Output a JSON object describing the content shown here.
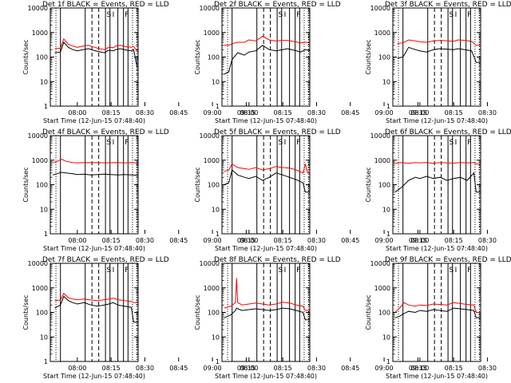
{
  "chart_data": {
    "type": "line",
    "layout": "3x3 grid of panels",
    "shared": {
      "xlabel": "Start Time (12-Jun-15 07:48:40)",
      "ylabel": "Counts/sec",
      "x_tick_labels": [
        "08:00",
        "08:15",
        "08:30",
        "08:45",
        "09:00",
        "09:15"
      ],
      "y_tick_labels": [
        "1",
        "10",
        "100",
        "1000",
        "10000"
      ],
      "ylim": [
        1,
        10000
      ],
      "yscale": "log",
      "xlim_minutes_after_0800": [
        -12,
        27
      ],
      "legend_text": "BLACK = Events, RED = LLD",
      "event_markers": [
        {
          "label": "S",
          "minute": 14
        },
        {
          "label": "I",
          "minute": 16
        },
        {
          "label": "F",
          "minute": 22
        }
      ],
      "colors": {
        "events": "#000000",
        "lld": "#ff0000"
      }
    },
    "panels": [
      {
        "title": "Det 1f BLACK = Events, RED = LLD",
        "series": [
          {
            "name": "Events",
            "x": [
              -10,
              -7.5,
              -6,
              -4,
              -2,
              0,
              2.5,
              5,
              7,
              9,
              12,
              14,
              16,
              17,
              19,
              22,
              24,
              25,
              26.5,
              27
            ],
            "y": [
              150,
              160,
              400,
              250,
              200,
              180,
              200,
              220,
              190,
              170,
              150,
              190,
              180,
              200,
              220,
              190,
              180,
              200,
              40,
              40
            ]
          },
          {
            "name": "LLD",
            "x": [
              -10,
              -7.5,
              -6,
              -4,
              -2,
              0,
              2.5,
              5,
              7,
              9,
              12,
              14,
              16,
              17,
              19,
              22,
              24,
              25,
              27
            ],
            "y": [
              220,
              230,
              550,
              330,
              280,
              250,
              280,
              300,
              260,
              230,
              200,
              250,
              240,
              280,
              300,
              260,
              250,
              270,
              150
            ]
          }
        ]
      },
      {
        "title": "Det 2f BLACK = Events, RED = LLD",
        "series": [
          {
            "name": "Events",
            "x": [
              -11,
              -9,
              -7.5,
              -5,
              -2,
              0,
              3,
              6,
              9,
              12,
              15,
              17,
              20,
              23,
              25,
              27
            ],
            "y": [
              20,
              25,
              80,
              150,
              120,
              160,
              180,
              300,
              200,
              180,
              200,
              220,
              190,
              160,
              200,
              180
            ]
          },
          {
            "name": "LLD",
            "x": [
              -11,
              -9,
              -7.5,
              -5,
              -2,
              0,
              3,
              6,
              9,
              12,
              15,
              17,
              20,
              23,
              25,
              27
            ],
            "y": [
              300,
              300,
              350,
              400,
              400,
              500,
              450,
              700,
              500,
              450,
              480,
              480,
              430,
              380,
              400,
              380
            ]
          }
        ]
      },
      {
        "title": "Det 3f BLACK = Events, RED = LLD",
        "series": [
          {
            "name": "Events",
            "x": [
              -10,
              -7.5,
              -5,
              -2,
              0,
              3,
              6,
              9,
              12,
              15,
              17,
              20,
              23,
              25,
              27
            ],
            "y": [
              90,
              100,
              250,
              200,
              180,
              160,
              200,
              220,
              210,
              200,
              220,
              200,
              180,
              60,
              60
            ]
          },
          {
            "name": "LLD",
            "x": [
              -10,
              -7.5,
              -5,
              -2,
              0,
              3,
              6,
              9,
              12,
              15,
              17,
              20,
              23,
              25,
              27
            ],
            "y": [
              350,
              380,
              500,
              450,
              420,
              400,
              450,
              480,
              460,
              440,
              500,
              480,
              430,
              300,
              300
            ]
          }
        ]
      },
      {
        "title": "Det 4f BLACK = Events, RED = LLD",
        "series": [
          {
            "name": "Events",
            "x": [
              -11,
              -9,
              -7,
              -5,
              -2,
              0,
              3,
              6,
              9,
              12,
              15,
              18,
              21,
              24,
              27
            ],
            "y": [
              250,
              280,
              320,
              300,
              280,
              260,
              270,
              250,
              260,
              270,
              260,
              250,
              260,
              250,
              240
            ]
          },
          {
            "name": "LLD",
            "x": [
              -11,
              -9,
              -7,
              -5,
              -2,
              0,
              3,
              6,
              9,
              12,
              15,
              18,
              21,
              24,
              27
            ],
            "y": [
              800,
              900,
              1100,
              900,
              800,
              780,
              800,
              790,
              800,
              780,
              790,
              800,
              780,
              790,
              780
            ]
          }
        ]
      },
      {
        "title": "Det 5f BLACK = Events, RED = LLD",
        "series": [
          {
            "name": "Events",
            "x": [
              -11,
              -9,
              -7.5,
              -5,
              -2,
              0,
              3,
              6,
              9,
              12,
              15,
              18,
              21,
              24,
              25,
              26,
              27
            ],
            "y": [
              100,
              120,
              400,
              250,
              200,
              180,
              220,
              150,
              200,
              300,
              250,
              200,
              160,
              120,
              50,
              50,
              50
            ]
          },
          {
            "name": "LLD",
            "x": [
              -11,
              -9,
              -7.5,
              -5,
              -2,
              0,
              3,
              6,
              9,
              12,
              15,
              18,
              21,
              24,
              25,
              26,
              27
            ],
            "y": [
              350,
              400,
              700,
              500,
              450,
              420,
              500,
              400,
              450,
              550,
              500,
              480,
              400,
              300,
              700,
              300,
              300
            ]
          }
        ]
      },
      {
        "title": "Det 6f BLACK = Events, RED = LLD",
        "series": [
          {
            "name": "Events",
            "x": [
              -11,
              -8,
              -5,
              -2,
              0,
              3,
              6,
              9,
              12,
              15,
              18,
              21,
              24,
              25,
              27
            ],
            "y": [
              50,
              80,
              150,
              200,
              180,
              220,
              180,
              200,
              150,
              180,
              200,
              150,
              300,
              50,
              50
            ]
          },
          {
            "name": "LLD",
            "x": [
              -11,
              -8,
              -5,
              -2,
              0,
              3,
              6,
              9,
              12,
              15,
              18,
              21,
              24,
              25,
              27
            ],
            "y": [
              750,
              800,
              750,
              800,
              780,
              800,
              750,
              800,
              780,
              760,
              800,
              780,
              800,
              700,
              700
            ]
          }
        ]
      },
      {
        "title": "Det 7f BLACK = Events, RED = LLD",
        "series": [
          {
            "name": "Events",
            "x": [
              -10,
              -7.5,
              -6,
              -4,
              -2,
              0,
              3,
              6,
              9,
              12,
              14,
              16,
              18,
              21,
              24,
              25,
              27
            ],
            "y": [
              150,
              200,
              450,
              300,
              250,
              220,
              250,
              200,
              180,
              200,
              220,
              250,
              200,
              180,
              160,
              40,
              40
            ]
          },
          {
            "name": "LLD",
            "x": [
              -10,
              -7.5,
              -6,
              -4,
              -2,
              0,
              3,
              6,
              9,
              12,
              14,
              16,
              18,
              21,
              24,
              25,
              27
            ],
            "y": [
              300,
              320,
              600,
              400,
              350,
              330,
              350,
              320,
              300,
              330,
              350,
              380,
              330,
              300,
              280,
              250,
              250
            ]
          }
        ]
      },
      {
        "title": "Det 8f BLACK = Events, RED = LLD",
        "series": [
          {
            "name": "Events",
            "x": [
              -11,
              -8,
              -6,
              -5.5,
              -5,
              -3,
              0,
              3,
              6,
              9,
              12,
              15,
              18,
              21,
              24,
              25,
              27
            ],
            "y": [
              60,
              80,
              120,
              150,
              140,
              120,
              130,
              140,
              130,
              120,
              130,
              150,
              140,
              120,
              100,
              50,
              50
            ]
          },
          {
            "name": "LLD",
            "x": [
              -11,
              -8,
              -6,
              -5.5,
              -5,
              -3,
              0,
              3,
              6,
              9,
              12,
              15,
              18,
              21,
              24,
              25,
              27
            ],
            "y": [
              150,
              180,
              250,
              2500,
              250,
              200,
              220,
              240,
              220,
              200,
              220,
              260,
              240,
              200,
              180,
              120,
              120
            ]
          }
        ]
      },
      {
        "title": "Det 9f BLACK = Events, RED = LLD",
        "series": [
          {
            "name": "Events",
            "x": [
              -11,
              -9,
              -7,
              -5,
              -2,
              0,
              3,
              6,
              9,
              12,
              15,
              18,
              21,
              24,
              25,
              27
            ],
            "y": [
              60,
              70,
              90,
              110,
              100,
              120,
              110,
              130,
              120,
              110,
              150,
              140,
              130,
              120,
              60,
              60
            ]
          },
          {
            "name": "LLD",
            "x": [
              -11,
              -9,
              -7,
              -5,
              -2,
              0,
              3,
              6,
              9,
              12,
              15,
              18,
              21,
              24,
              25,
              27
            ],
            "y": [
              100,
              150,
              250,
              200,
              180,
              200,
              190,
              220,
              210,
              200,
              250,
              230,
              210,
              200,
              100,
              100
            ]
          }
        ]
      }
    ]
  }
}
